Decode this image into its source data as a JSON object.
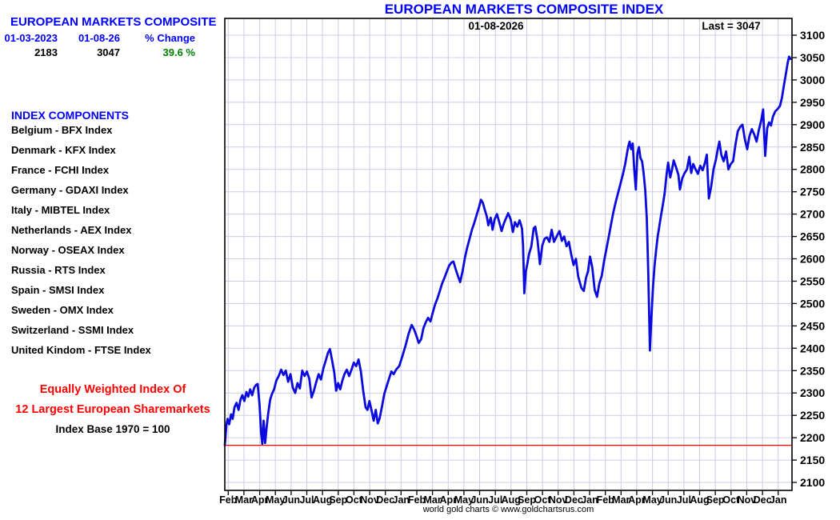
{
  "colors": {
    "accent_blue": "#0000ff",
    "text_black": "#000000",
    "positive_green": "#008000",
    "note_red": "#ff0000",
    "line_blue": "#0b0bdd",
    "grid": "#ccccea",
    "baseline_red": "#ff0000"
  },
  "left_panel": {
    "title": "EUROPEAN MARKETS COMPOSITE",
    "start_date": "01-03-2023",
    "end_date": "01-08-26",
    "change_label": "% Change",
    "start_value": "2183",
    "end_value": "3047",
    "change_value": "39.6 %",
    "components_title": "INDEX COMPONENTS",
    "components": [
      "Belgium - BFX Index",
      "Denmark - KFX Index",
      "France - FCHI Index",
      "Germany - GDAXI Index",
      "Italy - MIBTEL Index",
      "Netherlands - AEX Index",
      "Norway - OSEAX Index",
      "Russia - RTS Index",
      "Spain - SMSI Index",
      "Sweden - OMX Index",
      "Switzerland - SSMI Index",
      "United Kindom - FTSE Index"
    ],
    "note_line1": "Equally Weighted Index Of",
    "note_line2": "12 Largest European Sharemarkets",
    "note_line3": "Index Base 1970 = 100"
  },
  "footer": {
    "caption": "world gold charts © www.goldchartsrus.com"
  },
  "chart_data": {
    "type": "line",
    "title": "EUROPEAN MARKETS COMPOSITE INDEX",
    "top_center_label": "01-08-2026",
    "last_label": "Last = 3047",
    "last_value": 3047,
    "start_value": 2183,
    "x_start_date": "01-03-2023",
    "x_end_date": "01-08-2026",
    "x_unit": "months_since_2023-01-03",
    "ylim": [
      2100,
      3100
    ],
    "y_tick_step": 50,
    "grid": true,
    "legend": "none",
    "baseline": {
      "value": 2183,
      "color": "#ff0000"
    },
    "x_tick_labels": [
      "Feb",
      "Mar",
      "Apr",
      "May",
      "Jun",
      "Jul",
      "Aug",
      "Sep",
      "Oct",
      "Nov",
      "Dec",
      "Jan",
      "Feb",
      "Mar",
      "Apr",
      "May",
      "Jun",
      "Jul",
      "Aug",
      "Sep",
      "Oct",
      "Nov",
      "Dec",
      "Jan",
      "Feb",
      "Mar",
      "Apr",
      "May",
      "Jun",
      "Jul",
      "Aug",
      "Sep",
      "Oct",
      "Nov",
      "Dec",
      "Jan"
    ],
    "series": [
      {
        "name": "European Markets Composite Index",
        "points": [
          [
            0,
            2183
          ],
          [
            0.1,
            2228
          ],
          [
            0.18,
            2242
          ],
          [
            0.28,
            2230
          ],
          [
            0.4,
            2252
          ],
          [
            0.5,
            2242
          ],
          [
            0.62,
            2268
          ],
          [
            0.75,
            2278
          ],
          [
            0.88,
            2262
          ],
          [
            1.0,
            2285
          ],
          [
            1.12,
            2295
          ],
          [
            1.25,
            2282
          ],
          [
            1.38,
            2302
          ],
          [
            1.5,
            2292
          ],
          [
            1.62,
            2308
          ],
          [
            1.75,
            2295
          ],
          [
            1.88,
            2312
          ],
          [
            2.0,
            2318
          ],
          [
            2.1,
            2320
          ],
          [
            2.22,
            2275
          ],
          [
            2.32,
            2210
          ],
          [
            2.4,
            2186
          ],
          [
            2.48,
            2238
          ],
          [
            2.58,
            2188
          ],
          [
            2.68,
            2225
          ],
          [
            2.78,
            2255
          ],
          [
            2.9,
            2285
          ],
          [
            3.02,
            2298
          ],
          [
            3.15,
            2308
          ],
          [
            3.3,
            2328
          ],
          [
            3.45,
            2338
          ],
          [
            3.6,
            2352
          ],
          [
            3.75,
            2340
          ],
          [
            3.9,
            2350
          ],
          [
            4.05,
            2325
          ],
          [
            4.2,
            2342
          ],
          [
            4.35,
            2312
          ],
          [
            4.5,
            2300
          ],
          [
            4.65,
            2322
          ],
          [
            4.8,
            2310
          ],
          [
            4.95,
            2350
          ],
          [
            5.1,
            2338
          ],
          [
            5.25,
            2348
          ],
          [
            5.4,
            2332
          ],
          [
            5.55,
            2290
          ],
          [
            5.7,
            2305
          ],
          [
            5.85,
            2325
          ],
          [
            6.0,
            2342
          ],
          [
            6.15,
            2330
          ],
          [
            6.3,
            2355
          ],
          [
            6.45,
            2372
          ],
          [
            6.6,
            2390
          ],
          [
            6.72,
            2398
          ],
          [
            6.85,
            2375
          ],
          [
            7.0,
            2345
          ],
          [
            7.12,
            2305
          ],
          [
            7.25,
            2322
          ],
          [
            7.38,
            2308
          ],
          [
            7.52,
            2328
          ],
          [
            7.65,
            2342
          ],
          [
            7.8,
            2352
          ],
          [
            7.95,
            2338
          ],
          [
            8.1,
            2352
          ],
          [
            8.25,
            2368
          ],
          [
            8.4,
            2360
          ],
          [
            8.55,
            2375
          ],
          [
            8.7,
            2348
          ],
          [
            8.85,
            2305
          ],
          [
            9.0,
            2268
          ],
          [
            9.12,
            2262
          ],
          [
            9.25,
            2282
          ],
          [
            9.4,
            2258
          ],
          [
            9.52,
            2238
          ],
          [
            9.65,
            2262
          ],
          [
            9.78,
            2232
          ],
          [
            9.9,
            2243
          ],
          [
            10.05,
            2270
          ],
          [
            10.2,
            2298
          ],
          [
            10.35,
            2315
          ],
          [
            10.5,
            2332
          ],
          [
            10.65,
            2348
          ],
          [
            10.8,
            2342
          ],
          [
            10.95,
            2352
          ],
          [
            11.15,
            2360
          ],
          [
            11.35,
            2382
          ],
          [
            11.55,
            2405
          ],
          [
            11.75,
            2432
          ],
          [
            11.95,
            2452
          ],
          [
            12.1,
            2442
          ],
          [
            12.25,
            2428
          ],
          [
            12.4,
            2412
          ],
          [
            12.55,
            2420
          ],
          [
            12.7,
            2445
          ],
          [
            12.85,
            2458
          ],
          [
            13.0,
            2468
          ],
          [
            13.15,
            2460
          ],
          [
            13.3,
            2480
          ],
          [
            13.45,
            2498
          ],
          [
            13.6,
            2512
          ],
          [
            13.75,
            2528
          ],
          [
            13.9,
            2545
          ],
          [
            14.05,
            2558
          ],
          [
            14.2,
            2572
          ],
          [
            14.35,
            2585
          ],
          [
            14.5,
            2592
          ],
          [
            14.62,
            2594
          ],
          [
            14.75,
            2578
          ],
          [
            14.9,
            2562
          ],
          [
            15.05,
            2548
          ],
          [
            15.2,
            2572
          ],
          [
            15.35,
            2602
          ],
          [
            15.5,
            2625
          ],
          [
            15.65,
            2645
          ],
          [
            15.8,
            2665
          ],
          [
            15.95,
            2680
          ],
          [
            16.1,
            2698
          ],
          [
            16.25,
            2715
          ],
          [
            16.38,
            2732
          ],
          [
            16.5,
            2725
          ],
          [
            16.62,
            2710
          ],
          [
            16.75,
            2695
          ],
          [
            16.85,
            2675
          ],
          [
            17.0,
            2692
          ],
          [
            17.12,
            2665
          ],
          [
            17.25,
            2688
          ],
          [
            17.4,
            2700
          ],
          [
            17.55,
            2682
          ],
          [
            17.7,
            2662
          ],
          [
            17.85,
            2680
          ],
          [
            18.0,
            2692
          ],
          [
            18.12,
            2702
          ],
          [
            18.28,
            2688
          ],
          [
            18.42,
            2660
          ],
          [
            18.55,
            2682
          ],
          [
            18.7,
            2672
          ],
          [
            18.85,
            2686
          ],
          [
            19.0,
            2668
          ],
          [
            19.07,
            2630
          ],
          [
            19.15,
            2523
          ],
          [
            19.25,
            2572
          ],
          [
            19.35,
            2590
          ],
          [
            19.45,
            2610
          ],
          [
            19.6,
            2628
          ],
          [
            19.75,
            2668
          ],
          [
            19.85,
            2672
          ],
          [
            20.0,
            2640
          ],
          [
            20.15,
            2588
          ],
          [
            20.3,
            2630
          ],
          [
            20.45,
            2645
          ],
          [
            20.6,
            2648
          ],
          [
            20.75,
            2638
          ],
          [
            20.9,
            2665
          ],
          [
            21.05,
            2638
          ],
          [
            21.25,
            2652
          ],
          [
            21.4,
            2662
          ],
          [
            21.55,
            2640
          ],
          [
            21.7,
            2650
          ],
          [
            21.85,
            2628
          ],
          [
            22.0,
            2638
          ],
          [
            22.15,
            2610
          ],
          [
            22.3,
            2586
          ],
          [
            22.45,
            2600
          ],
          [
            22.6,
            2560
          ],
          [
            22.8,
            2535
          ],
          [
            22.95,
            2528
          ],
          [
            23.1,
            2558
          ],
          [
            23.22,
            2572
          ],
          [
            23.35,
            2605
          ],
          [
            23.5,
            2580
          ],
          [
            23.65,
            2530
          ],
          [
            23.8,
            2515
          ],
          [
            23.95,
            2545
          ],
          [
            24.1,
            2562
          ],
          [
            24.25,
            2595
          ],
          [
            24.4,
            2622
          ],
          [
            24.55,
            2650
          ],
          [
            24.7,
            2678
          ],
          [
            24.85,
            2705
          ],
          [
            25.0,
            2728
          ],
          [
            25.15,
            2748
          ],
          [
            25.3,
            2768
          ],
          [
            25.45,
            2788
          ],
          [
            25.6,
            2812
          ],
          [
            25.7,
            2832
          ],
          [
            25.8,
            2852
          ],
          [
            25.88,
            2862
          ],
          [
            25.98,
            2845
          ],
          [
            26.08,
            2858
          ],
          [
            26.18,
            2800
          ],
          [
            26.28,
            2755
          ],
          [
            26.38,
            2835
          ],
          [
            26.48,
            2850
          ],
          [
            26.58,
            2825
          ],
          [
            26.68,
            2818
          ],
          [
            26.78,
            2792
          ],
          [
            26.88,
            2755
          ],
          [
            26.98,
            2690
          ],
          [
            27.08,
            2565
          ],
          [
            27.18,
            2395
          ],
          [
            27.28,
            2470
          ],
          [
            27.38,
            2538
          ],
          [
            27.48,
            2585
          ],
          [
            27.58,
            2620
          ],
          [
            27.68,
            2650
          ],
          [
            27.78,
            2672
          ],
          [
            27.88,
            2695
          ],
          [
            28.0,
            2719
          ],
          [
            28.12,
            2745
          ],
          [
            28.25,
            2790
          ],
          [
            28.35,
            2815
          ],
          [
            28.48,
            2782
          ],
          [
            28.6,
            2800
          ],
          [
            28.7,
            2820
          ],
          [
            28.85,
            2805
          ],
          [
            29.0,
            2788
          ],
          [
            29.1,
            2755
          ],
          [
            29.25,
            2780
          ],
          [
            29.4,
            2792
          ],
          [
            29.55,
            2800
          ],
          [
            29.7,
            2828
          ],
          [
            29.82,
            2792
          ],
          [
            29.95,
            2812
          ],
          [
            30.1,
            2800
          ],
          [
            30.25,
            2790
          ],
          [
            30.4,
            2808
          ],
          [
            30.55,
            2798
          ],
          [
            30.7,
            2815
          ],
          [
            30.82,
            2833
          ],
          [
            30.95,
            2735
          ],
          [
            31.1,
            2762
          ],
          [
            31.25,
            2800
          ],
          [
            31.4,
            2822
          ],
          [
            31.52,
            2845
          ],
          [
            31.62,
            2862
          ],
          [
            31.75,
            2832
          ],
          [
            31.9,
            2818
          ],
          [
            32.05,
            2840
          ],
          [
            32.2,
            2800
          ],
          [
            32.35,
            2812
          ],
          [
            32.5,
            2818
          ],
          [
            32.65,
            2855
          ],
          [
            32.8,
            2885
          ],
          [
            32.95,
            2895
          ],
          [
            33.1,
            2900
          ],
          [
            33.25,
            2868
          ],
          [
            33.4,
            2845
          ],
          [
            33.55,
            2875
          ],
          [
            33.7,
            2890
          ],
          [
            33.85,
            2878
          ],
          [
            34.0,
            2862
          ],
          [
            34.15,
            2888
          ],
          [
            34.3,
            2910
          ],
          [
            34.42,
            2934
          ],
          [
            34.55,
            2830
          ],
          [
            34.68,
            2892
          ],
          [
            34.8,
            2905
          ],
          [
            34.92,
            2898
          ],
          [
            35.05,
            2918
          ],
          [
            35.2,
            2930
          ],
          [
            35.35,
            2935
          ],
          [
            35.5,
            2942
          ],
          [
            35.62,
            2960
          ],
          [
            35.75,
            2988
          ],
          [
            35.88,
            3015
          ],
          [
            36.0,
            3040
          ],
          [
            36.08,
            3052
          ],
          [
            36.17,
            3047
          ]
        ]
      }
    ]
  }
}
